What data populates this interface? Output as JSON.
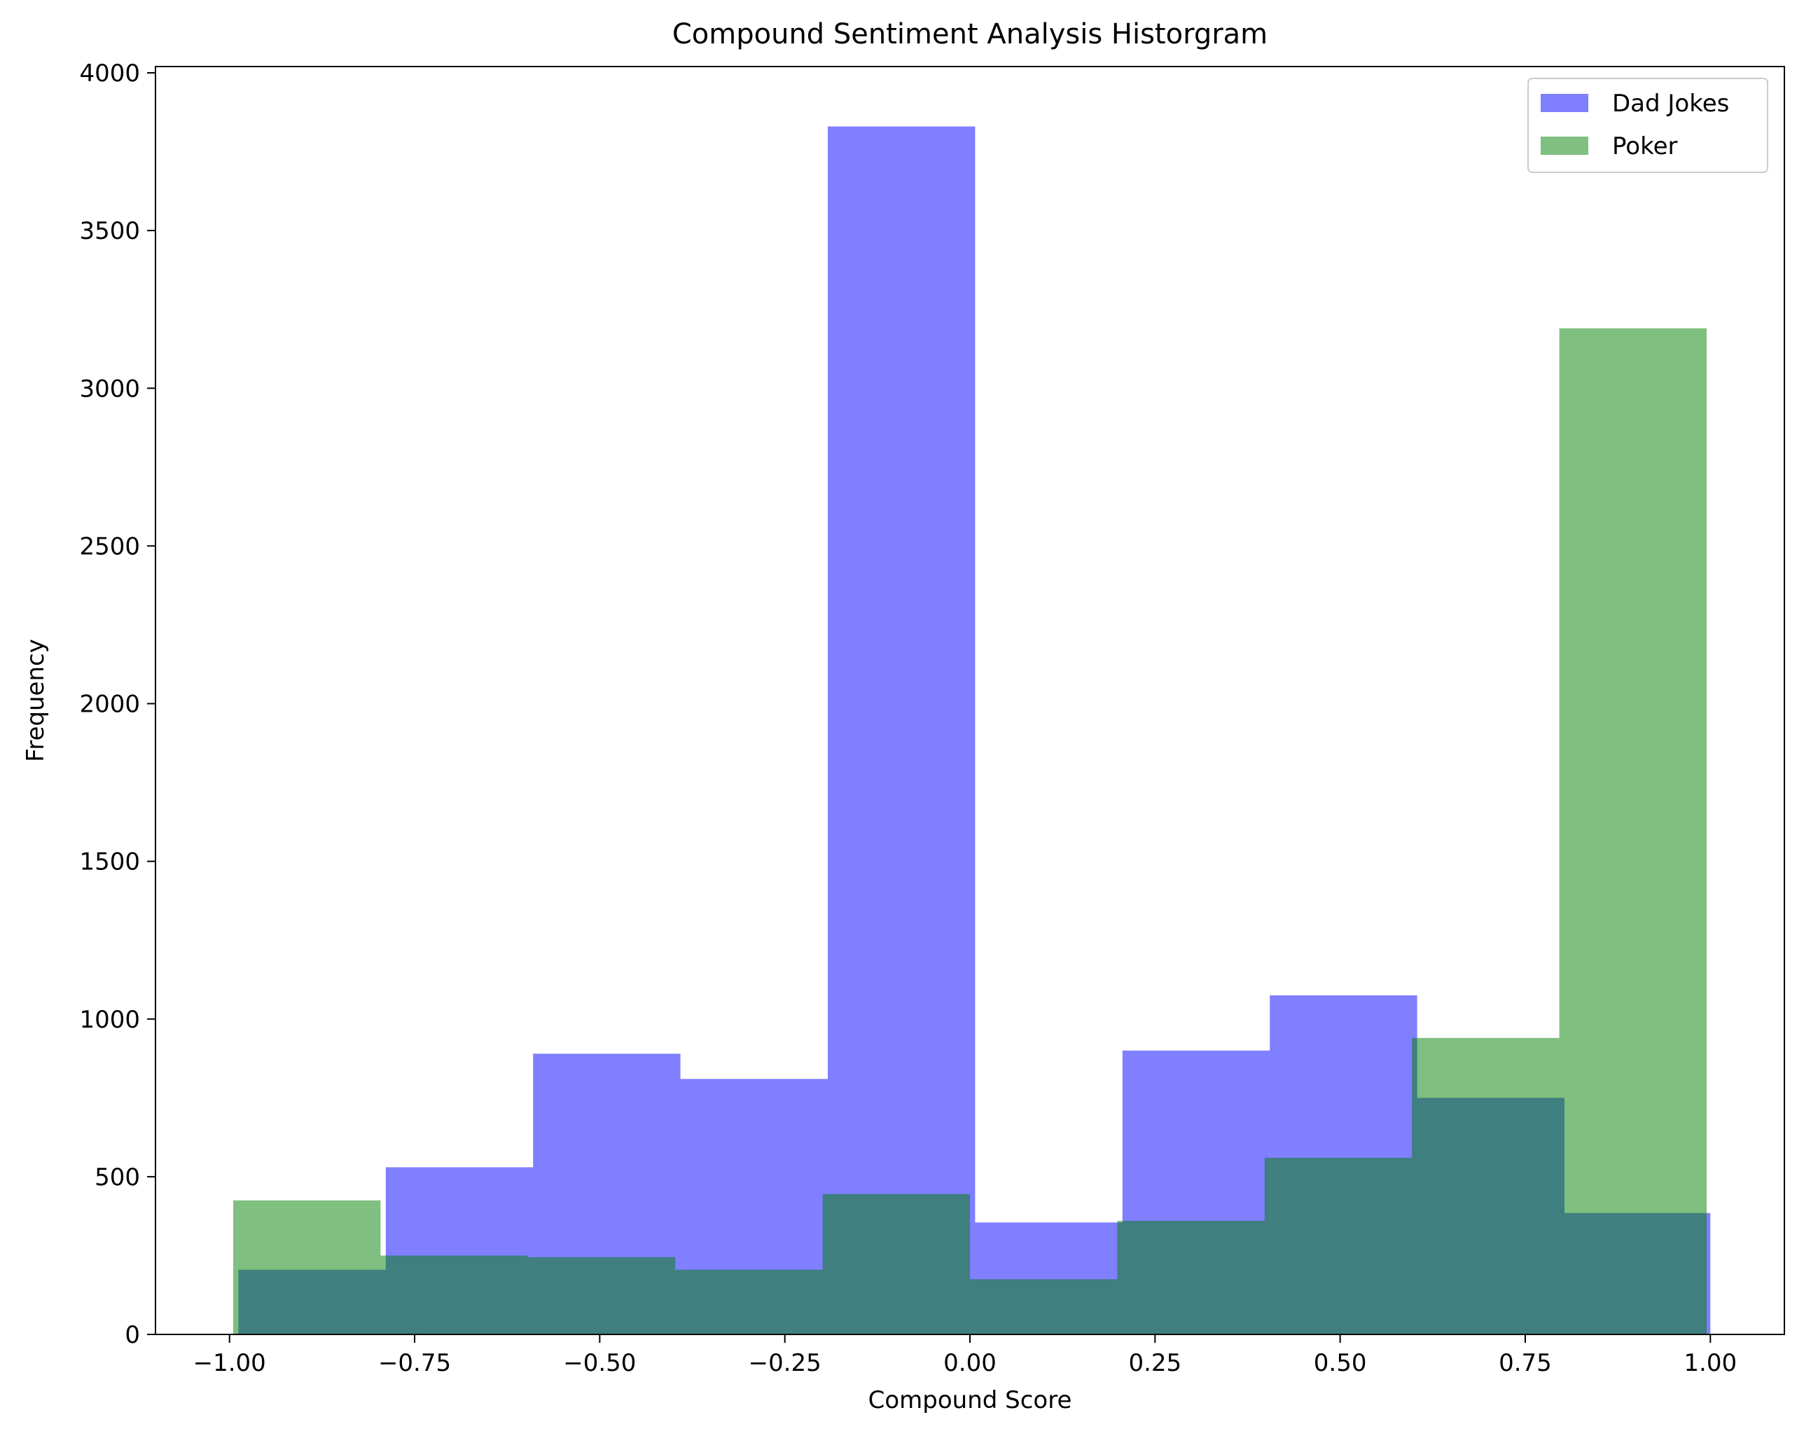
{
  "chart_data": {
    "type": "bar",
    "title": "Compound Sentiment Analysis Historgram",
    "xlabel": "Compound Score",
    "ylabel": "Frequency",
    "xlim": [
      -1.1,
      1.1
    ],
    "ylim": [
      0,
      4020
    ],
    "xticks": [
      -1.0,
      -0.75,
      -0.5,
      -0.25,
      0.0,
      0.25,
      0.5,
      0.75,
      1.0
    ],
    "xtick_labels": [
      "−1.00",
      "−0.75",
      "−0.50",
      "−0.25",
      "0.00",
      "0.25",
      "0.50",
      "0.75",
      "1.00"
    ],
    "yticks": [
      0,
      500,
      1000,
      1500,
      2000,
      2500,
      3000,
      3500,
      4000
    ],
    "ytick_labels": [
      "0",
      "500",
      "1000",
      "1500",
      "2000",
      "2500",
      "3000",
      "3500",
      "4000"
    ],
    "grid": false,
    "legend_position": "top-right",
    "series": [
      {
        "name": "Dad Jokes",
        "color": "#0000ff",
        "alpha": 0.5,
        "bins": [
          {
            "x0": -0.988,
            "x1": -0.789,
            "value": 205
          },
          {
            "x0": -0.789,
            "x1": -0.59,
            "value": 530
          },
          {
            "x0": -0.59,
            "x1": -0.391,
            "value": 890
          },
          {
            "x0": -0.391,
            "x1": -0.192,
            "value": 810
          },
          {
            "x0": -0.192,
            "x1": 0.007,
            "value": 3830
          },
          {
            "x0": 0.007,
            "x1": 0.206,
            "value": 355
          },
          {
            "x0": 0.206,
            "x1": 0.405,
            "value": 900
          },
          {
            "x0": 0.405,
            "x1": 0.604,
            "value": 1075
          },
          {
            "x0": 0.604,
            "x1": 0.803,
            "value": 750
          },
          {
            "x0": 0.803,
            "x1": 1.0,
            "value": 385
          }
        ]
      },
      {
        "name": "Poker",
        "color": "#008000",
        "alpha": 0.5,
        "bins": [
          {
            "x0": -0.995,
            "x1": -0.796,
            "value": 425
          },
          {
            "x0": -0.796,
            "x1": -0.597,
            "value": 250
          },
          {
            "x0": -0.597,
            "x1": -0.398,
            "value": 245
          },
          {
            "x0": -0.398,
            "x1": -0.199,
            "value": 205
          },
          {
            "x0": -0.199,
            "x1": 0.0,
            "value": 445
          },
          {
            "x0": 0.0,
            "x1": 0.199,
            "value": 175
          },
          {
            "x0": 0.199,
            "x1": 0.398,
            "value": 360
          },
          {
            "x0": 0.398,
            "x1": 0.597,
            "value": 560
          },
          {
            "x0": 0.597,
            "x1": 0.796,
            "value": 940
          },
          {
            "x0": 0.796,
            "x1": 0.995,
            "value": 3190
          }
        ]
      }
    ]
  }
}
